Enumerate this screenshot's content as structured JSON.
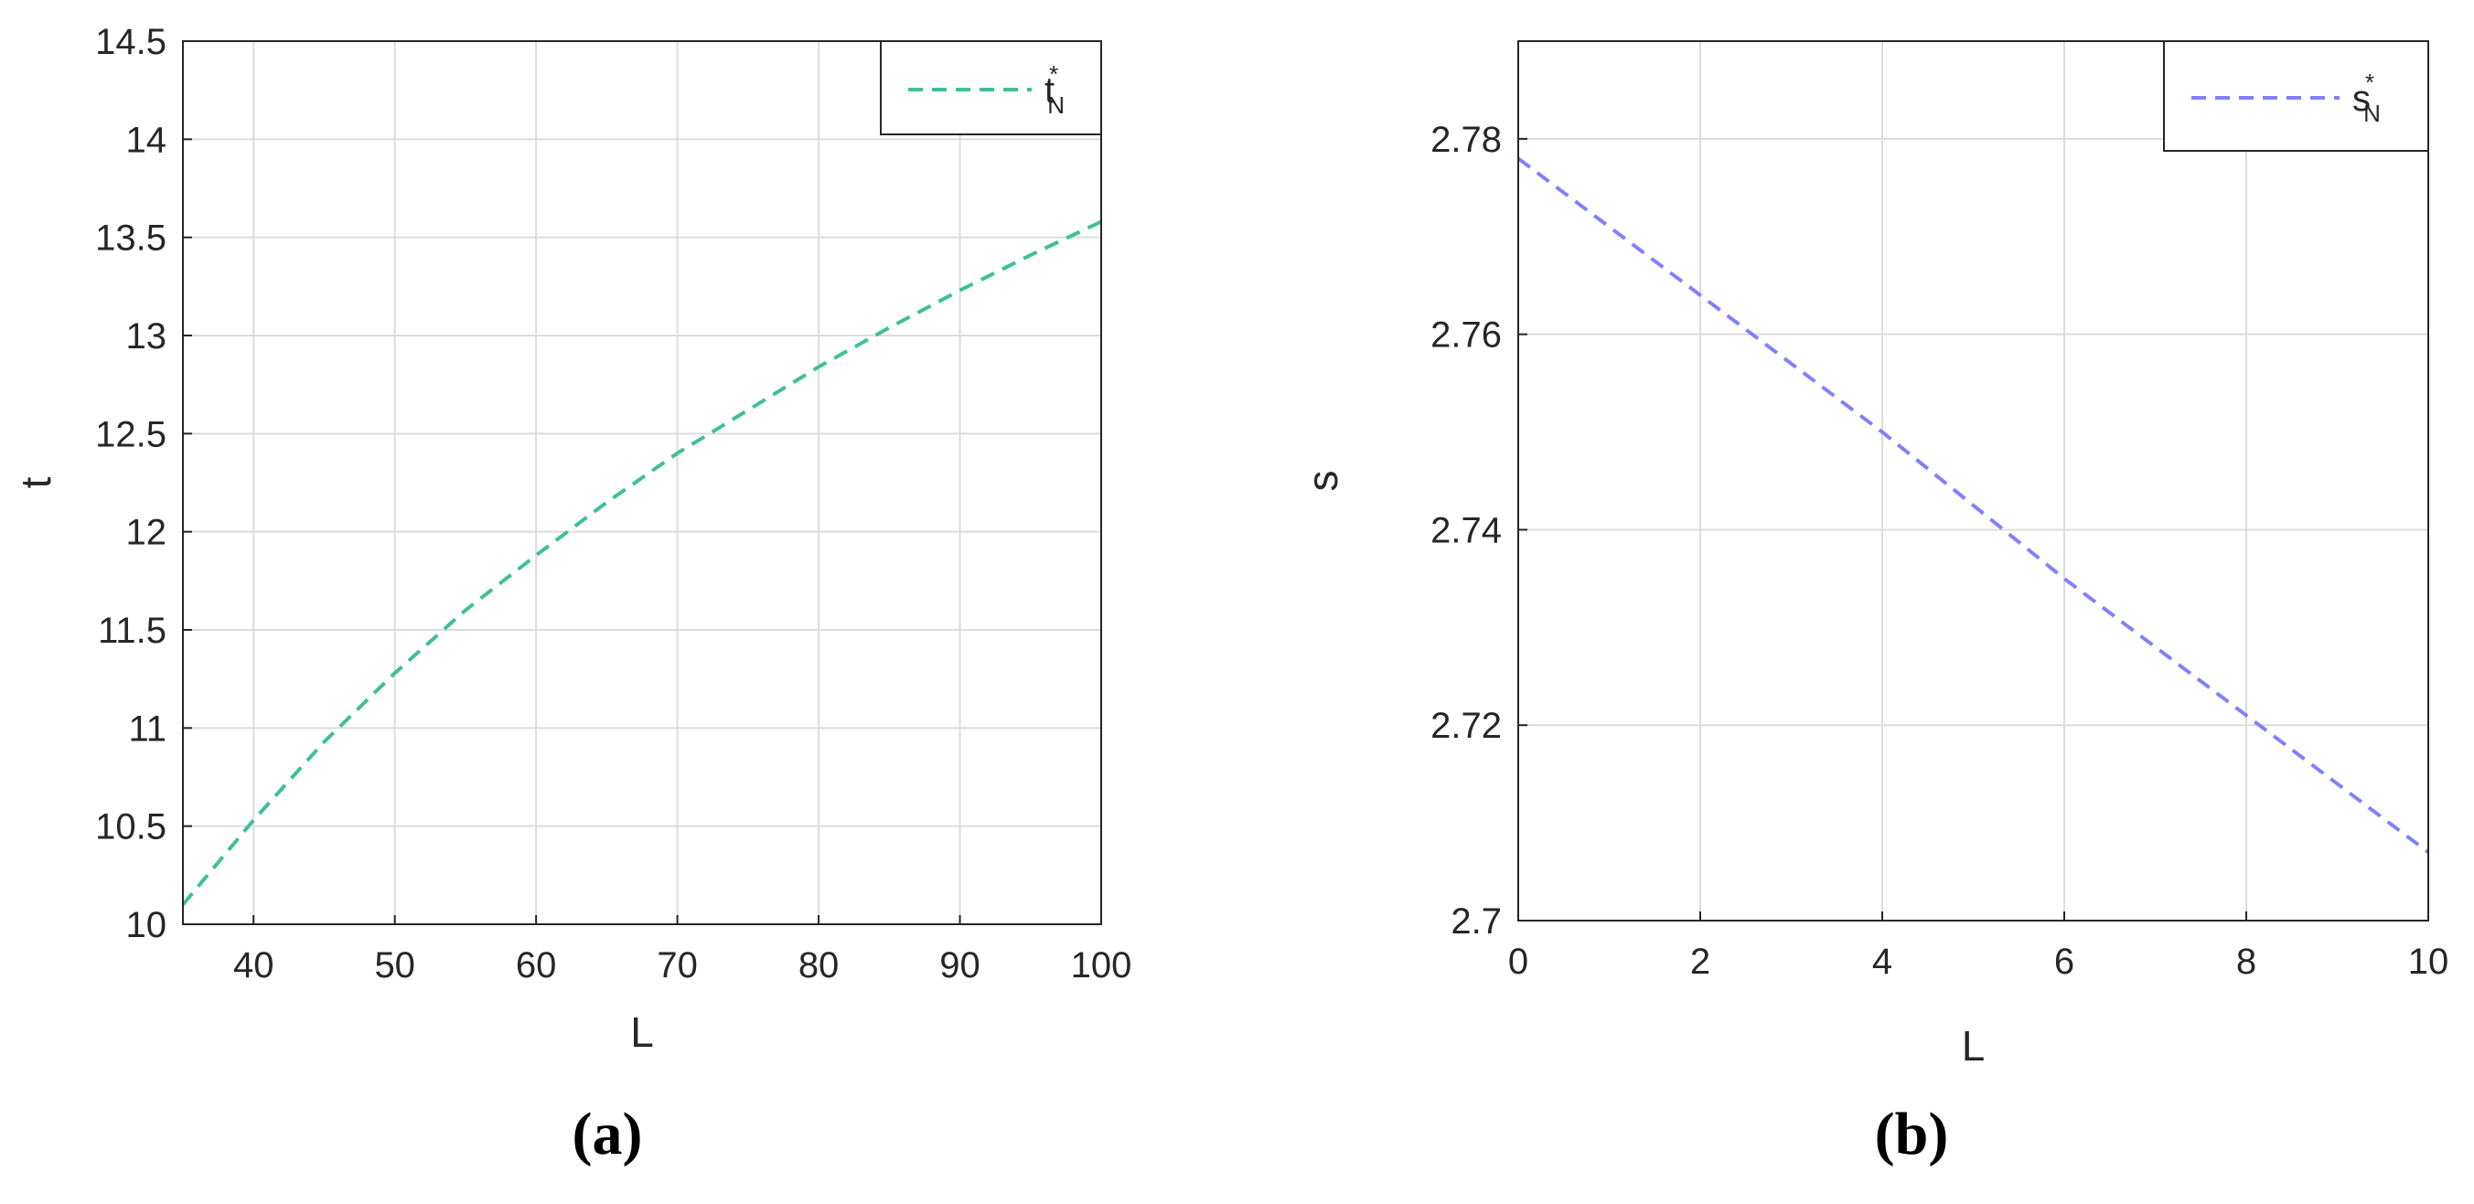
{
  "chart_data": [
    {
      "type": "line",
      "panel_label": "(a)",
      "xlabel": "L",
      "ylabel": "t",
      "xlim": [
        35,
        100
      ],
      "ylim": [
        10,
        14.5
      ],
      "xticks": [
        40,
        50,
        60,
        70,
        80,
        90,
        100
      ],
      "yticks": [
        10,
        10.5,
        11,
        11.5,
        12,
        12.5,
        13,
        13.5,
        14,
        14.5
      ],
      "grid": true,
      "legend_position": "top-right",
      "series": [
        {
          "name": "t",
          "name_sup": "*",
          "name_sub": "N",
          "color": "#3dbf9a",
          "line_style": "dashed",
          "x": [
            35,
            40,
            45,
            50,
            55,
            60,
            65,
            70,
            75,
            80,
            85,
            90,
            95,
            100
          ],
          "y": [
            10.1,
            10.53,
            10.93,
            11.28,
            11.6,
            11.88,
            12.15,
            12.4,
            12.62,
            12.84,
            13.04,
            13.23,
            13.41,
            13.58
          ]
        }
      ]
    },
    {
      "type": "line",
      "panel_label": "(b)",
      "xlabel": "L",
      "ylabel": "s",
      "xlim": [
        0,
        10
      ],
      "ylim": [
        2.7,
        2.79
      ],
      "xticks": [
        0,
        2,
        4,
        6,
        8,
        10
      ],
      "yticks": [
        2.7,
        2.72,
        2.74,
        2.76,
        2.78
      ],
      "grid": true,
      "legend_position": "top-right",
      "series": [
        {
          "name": "s",
          "name_sup": "*",
          "name_sub": "N",
          "color": "#8080ff",
          "line_style": "dashed",
          "x": [
            0,
            2,
            4,
            6,
            8,
            10
          ],
          "y": [
            2.778,
            2.764,
            2.75,
            2.735,
            2.721,
            2.707
          ]
        }
      ]
    }
  ]
}
